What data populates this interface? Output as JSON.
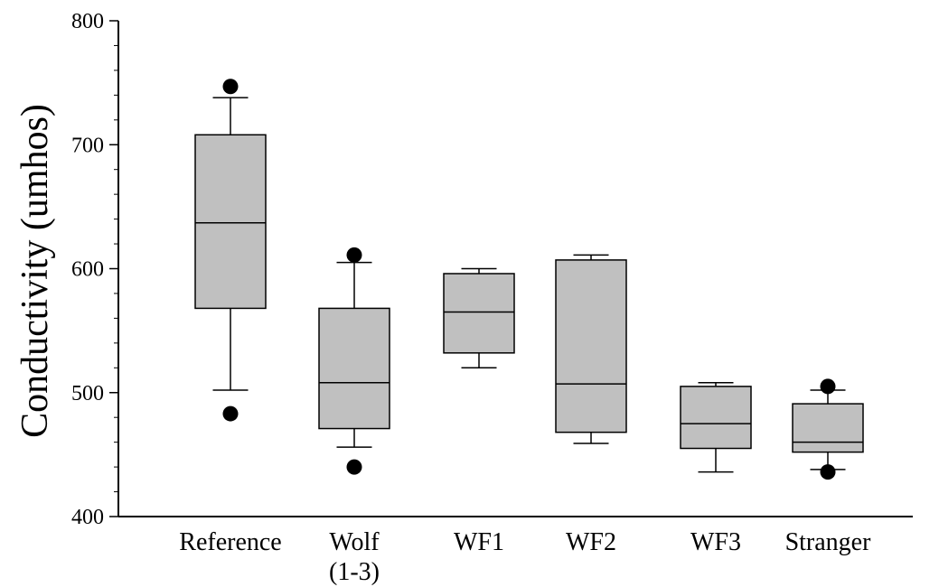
{
  "chart_data": {
    "type": "boxplot",
    "title": "",
    "xlabel": "",
    "ylabel": "Conductivity (umhos)",
    "ylim": [
      400,
      800
    ],
    "y_major_ticks": [
      400,
      500,
      600,
      700,
      800
    ],
    "y_minor_step": 20,
    "grid": false,
    "legend": "none",
    "box_fill": "#c0c0c0",
    "categories": [
      {
        "label_lines": [
          "Reference"
        ],
        "whisker_low": 502,
        "q1": 568,
        "median": 637,
        "q3": 708,
        "whisker_high": 738,
        "outliers": [
          747,
          483
        ]
      },
      {
        "label_lines": [
          "Wolf",
          "(1-3)"
        ],
        "whisker_low": 456,
        "q1": 471,
        "median": 508,
        "q3": 568,
        "whisker_high": 605,
        "outliers": [
          611,
          440
        ]
      },
      {
        "label_lines": [
          "WF1"
        ],
        "whisker_low": 520,
        "q1": 532,
        "median": 565,
        "q3": 596,
        "whisker_high": 600,
        "outliers": []
      },
      {
        "label_lines": [
          "WF2"
        ],
        "whisker_low": 459,
        "q1": 468,
        "median": 507,
        "q3": 607,
        "whisker_high": 611,
        "outliers": []
      },
      {
        "label_lines": [
          "WF3"
        ],
        "whisker_low": 436,
        "q1": 455,
        "median": 475,
        "q3": 505,
        "whisker_high": 508,
        "outliers": []
      },
      {
        "label_lines": [
          "Stranger"
        ],
        "whisker_low": 438,
        "q1": 452,
        "median": 460,
        "q3": 491,
        "whisker_high": 502,
        "outliers": [
          505,
          436
        ]
      }
    ]
  }
}
